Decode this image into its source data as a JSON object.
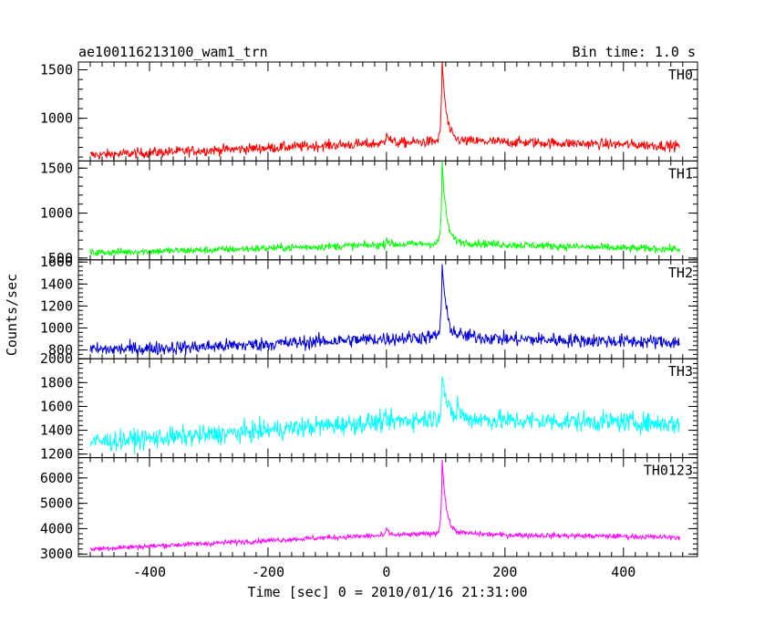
{
  "header": {
    "title": "ae100116213100_wam1_trn",
    "bin_time": "Bin time: 1.0 s"
  },
  "chart_data": {
    "type": "line",
    "title": "ae100116213100_wam1_trn",
    "subtitle": "Bin time: 1.0 s",
    "xlabel": "Time [sec] 0 = 2010/01/16 21:31:00",
    "ylabel": "Counts/sec",
    "xlim": [
      -520,
      525
    ],
    "xticks": [
      -400,
      -200,
      0,
      200,
      400
    ],
    "grid": false,
    "legend": "none",
    "panels": [
      {
        "label": "TH0",
        "color": "#ff0000",
        "ylim": [
          560,
          1580
        ],
        "yticks": [
          1000,
          1500
        ],
        "x_range": [
          -500,
          495
        ],
        "noise": 38,
        "trend": [
          [
            -500,
            620
          ],
          [
            -300,
            670
          ],
          [
            -100,
            720
          ],
          [
            80,
            760
          ],
          [
            100,
            770
          ],
          [
            200,
            755
          ],
          [
            400,
            730
          ],
          [
            495,
            715
          ]
        ],
        "peaks": [
          {
            "x": 94,
            "height": 840,
            "width": 3
          },
          {
            "x": 0,
            "height": 150,
            "width": 2
          }
        ]
      },
      {
        "label": "TH1",
        "color": "#00ff00",
        "ylim": [
          480,
          1580
        ],
        "yticks": [
          500,
          1000,
          1500
        ],
        "x_range": [
          -500,
          495
        ],
        "noise": 30,
        "trend": [
          [
            -500,
            560
          ],
          [
            -300,
            590
          ],
          [
            -100,
            630
          ],
          [
            80,
            660
          ],
          [
            100,
            680
          ],
          [
            200,
            650
          ],
          [
            400,
            610
          ],
          [
            495,
            600
          ]
        ],
        "peaks": [
          {
            "x": 94,
            "height": 900,
            "width": 3
          },
          {
            "x": 0,
            "height": 80,
            "width": 2
          }
        ]
      },
      {
        "label": "TH2",
        "color": "#0000dd",
        "ylim": [
          720,
          1620
        ],
        "yticks": [
          800,
          1000,
          1200,
          1400,
          1600
        ],
        "x_range": [
          -500,
          495
        ],
        "noise": 45,
        "trend": [
          [
            -500,
            800
          ],
          [
            -300,
            830
          ],
          [
            -100,
            880
          ],
          [
            80,
            920
          ],
          [
            100,
            940
          ],
          [
            200,
            900
          ],
          [
            400,
            880
          ],
          [
            495,
            870
          ]
        ],
        "peaks": [
          {
            "x": 94,
            "height": 660,
            "width": 3
          }
        ]
      },
      {
        "label": "TH3",
        "color": "#00ffff",
        "ylim": [
          1170,
          2000
        ],
        "yticks": [
          1200,
          1400,
          1600,
          1800,
          2000
        ],
        "x_range": [
          -500,
          495
        ],
        "noise": 60,
        "trend": [
          [
            -500,
            1300
          ],
          [
            -300,
            1360
          ],
          [
            -100,
            1440
          ],
          [
            80,
            1500
          ],
          [
            100,
            1510
          ],
          [
            200,
            1480
          ],
          [
            400,
            1470
          ],
          [
            495,
            1450
          ]
        ],
        "peaks": [
          {
            "x": 94,
            "height": 400,
            "width": 3
          },
          {
            "x": 120,
            "height": 120,
            "width": 2
          }
        ]
      },
      {
        "label": "TH0123",
        "color": "#ff00ff",
        "ylim": [
          2900,
          6800
        ],
        "yticks": [
          3000,
          4000,
          5000,
          6000
        ],
        "x_range": [
          -500,
          495
        ],
        "noise": 70,
        "trend": [
          [
            -500,
            3200
          ],
          [
            -300,
            3420
          ],
          [
            -100,
            3650
          ],
          [
            80,
            3800
          ],
          [
            100,
            3850
          ],
          [
            200,
            3750
          ],
          [
            400,
            3700
          ],
          [
            495,
            3650
          ]
        ],
        "peaks": [
          {
            "x": 94,
            "height": 2900,
            "width": 3
          },
          {
            "x": 0,
            "height": 300,
            "width": 2
          }
        ]
      }
    ]
  }
}
